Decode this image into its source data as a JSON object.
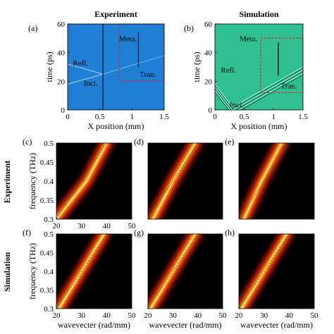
{
  "figure": {
    "row_labels": [
      "Experiment",
      "Simulation"
    ]
  },
  "chart_data": [
    {
      "id": "a",
      "type": "heatmap",
      "panel_label": "(a)",
      "title": "Experiment",
      "xlabel": "X position (mm)",
      "ylabel": "time (ps)",
      "xlim": [
        0,
        1.5
      ],
      "ylim": [
        0,
        60
      ],
      "x_ticks": [
        "0",
        "0.5",
        "1",
        "1.5"
      ],
      "y_ticks": [
        "0",
        "20",
        "40",
        "60"
      ],
      "background_color": "#1f7fd4",
      "dashed_box": {
        "x": [
          0.8,
          1.5
        ],
        "y": [
          20,
          60
        ],
        "color": "#d62728"
      },
      "metasurface_x": 0.55,
      "transmitted_x": 1.1,
      "annotations": [
        {
          "text": "Meta.",
          "x": 0.8,
          "y": 48
        },
        {
          "text": "Refl.",
          "x": 0.08,
          "y": 31
        },
        {
          "text": "Inci.",
          "x": 0.25,
          "y": 17
        },
        {
          "text": "Tran.",
          "x": 1.12,
          "y": 23
        }
      ]
    },
    {
      "id": "b",
      "type": "heatmap",
      "panel_label": "(b)",
      "title": "Simulation",
      "xlabel": "X position (mm)",
      "ylabel": "time (ps)",
      "xlim": [
        0,
        1.5
      ],
      "ylim": [
        0,
        60
      ],
      "x_ticks": [
        "0",
        "0.5",
        "1",
        "1.5"
      ],
      "y_ticks": [
        "0",
        "20",
        "40",
        "60"
      ],
      "background_color": "#2fbf91",
      "dashed_box": {
        "x": [
          0.78,
          1.5
        ],
        "y": [
          12,
          50
        ],
        "color": "#d62728"
      },
      "metasurface_x": 1.08,
      "annotations": [
        {
          "text": "Meta.",
          "x": 0.42,
          "y": 48
        },
        {
          "text": "Refl.",
          "x": 0.1,
          "y": 26
        },
        {
          "text": "Inci.",
          "x": 0.25,
          "y": 2
        },
        {
          "text": "Tran.",
          "x": 1.12,
          "y": 15
        }
      ]
    },
    {
      "id": "c",
      "type": "heatmap",
      "panel_label": "(c)",
      "xlim": [
        20,
        50
      ],
      "ylim": [
        0.3,
        0.5
      ],
      "x_ticks": [
        "20",
        "30",
        "40",
        "50"
      ],
      "y_ticks": [
        "0.3",
        "0.35",
        "0.4",
        "0.45",
        "0.5"
      ],
      "ylabel": "frequency (THz)",
      "ridge": [
        [
          20,
          0.3
        ],
        [
          32,
          0.4
        ],
        [
          40,
          0.5
        ]
      ],
      "dashed_fit": [
        [
          20,
          0.3
        ],
        [
          40,
          0.5
        ]
      ]
    },
    {
      "id": "d",
      "type": "heatmap",
      "panel_label": "(d)",
      "xlim": [
        20,
        50
      ],
      "ylim": [
        0.3,
        0.5
      ],
      "x_ticks": [],
      "y_ticks": [],
      "ridge": [
        [
          22,
          0.3
        ],
        [
          30,
          0.4
        ],
        [
          39,
          0.5
        ]
      ],
      "dashed_fit": [
        [
          20,
          0.3
        ],
        [
          40,
          0.5
        ]
      ]
    },
    {
      "id": "e",
      "type": "heatmap",
      "panel_label": "(e)",
      "xlim": [
        20,
        50
      ],
      "ylim": [
        0.3,
        0.5
      ],
      "x_ticks": [],
      "y_ticks": [],
      "ridge": [
        [
          22,
          0.3
        ],
        [
          29,
          0.4
        ],
        [
          37,
          0.5
        ]
      ],
      "dashed_fit": [
        [
          20,
          0.3
        ],
        [
          40,
          0.5
        ]
      ]
    },
    {
      "id": "f",
      "type": "heatmap",
      "panel_label": "(f)",
      "xlim": [
        20,
        50
      ],
      "ylim": [
        0.3,
        0.5
      ],
      "x_ticks": [
        "20",
        "30",
        "40",
        "50"
      ],
      "y_ticks": [
        "0.3",
        "0.35",
        "0.4",
        "0.45",
        "0.5"
      ],
      "xlabel": "wavevecter (rad/mm)",
      "ylabel": "frequency (THz)",
      "ridge": [
        [
          21,
          0.3
        ],
        [
          30,
          0.4
        ],
        [
          39,
          0.5
        ]
      ],
      "dashed_fit": [
        [
          20,
          0.3
        ],
        [
          40,
          0.5
        ]
      ]
    },
    {
      "id": "g",
      "type": "heatmap",
      "panel_label": "(g)",
      "xlim": [
        20,
        50
      ],
      "ylim": [
        0.3,
        0.5
      ],
      "x_ticks": [
        "20",
        "30",
        "40",
        "50"
      ],
      "y_ticks": [],
      "xlabel": "wavevecter (rad/mm)",
      "ridge": [
        [
          21,
          0.3
        ],
        [
          30,
          0.4
        ],
        [
          39,
          0.5
        ]
      ],
      "dashed_fit": [
        [
          20,
          0.3
        ],
        [
          40,
          0.5
        ]
      ]
    },
    {
      "id": "h",
      "type": "heatmap",
      "panel_label": "(h)",
      "xlim": [
        20,
        50
      ],
      "ylim": [
        0.3,
        0.5
      ],
      "x_ticks": [
        "20",
        "30",
        "40",
        "50"
      ],
      "y_ticks": [],
      "xlabel": "wavevecter (rad/mm)",
      "ridge": [
        [
          21,
          0.3
        ],
        [
          30,
          0.4
        ],
        [
          39,
          0.5
        ]
      ],
      "dashed_fit": [
        [
          20,
          0.3
        ],
        [
          40,
          0.5
        ]
      ]
    }
  ]
}
